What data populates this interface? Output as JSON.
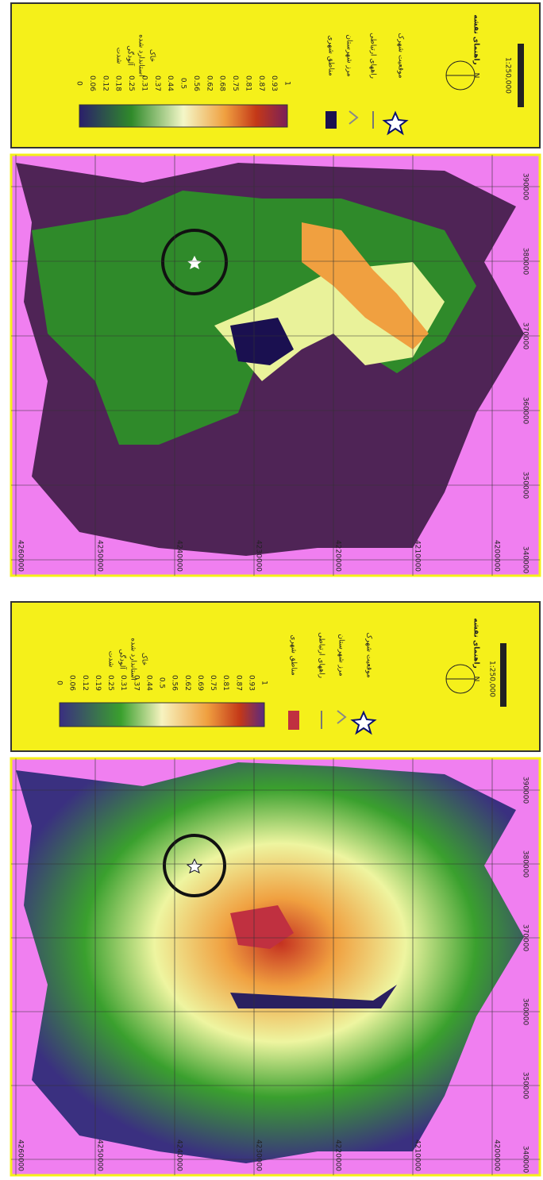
{
  "panels": [
    {
      "legend": {
        "title": "راهنمای نقشه",
        "caption": [
          "شدت",
          "آلودگی",
          "استاندارد شده",
          "خاک"
        ],
        "scale_labels": [
          "0",
          "0.06",
          "0.12",
          "0.18",
          "0.25",
          "0.31",
          "0.37",
          "0.44",
          "0.5",
          "0.56",
          "0.62",
          "0.68",
          "0.75",
          "0.81",
          "0.87",
          "0.93",
          "1"
        ],
        "items": [
          "مناطق شهری",
          "راههای ارتباطی",
          "مرز شهرستان",
          "موقعیت شهرک"
        ],
        "north": "N",
        "scale_text": "1:250,000"
      },
      "grid": {
        "y_labels": [
          "4260000",
          "4250000",
          "4240000",
          "4230000",
          "4220000",
          "4210000",
          "4200000"
        ],
        "x_labels": [
          "390000",
          "380000",
          "370000",
          "360000",
          "350000",
          "340000"
        ]
      }
    },
    {
      "legend": {
        "title": "راهنمای نقشه",
        "caption": [
          "شدت",
          "آلودگی",
          "استاندارد شده",
          "خاک"
        ],
        "scale_labels": [
          "0",
          "0.06",
          "0.12",
          "0.19",
          "0.25",
          "0.31",
          "0.37",
          "0.44",
          "0.5",
          "0.56",
          "0.62",
          "0.69",
          "0.75",
          "0.81",
          "0.87",
          "0.93",
          "1"
        ],
        "items": [
          "مناطق شهری",
          "راههای ارتباطی",
          "مرز شهرستان",
          "موقعیت شهرک"
        ],
        "north": "N",
        "scale_text": "1:250,000"
      },
      "grid": {
        "y_labels": [
          "4260000",
          "4250000",
          "4240000",
          "4230000",
          "4220000",
          "4210000",
          "4200000"
        ],
        "x_labels": [
          "390000",
          "380000",
          "370000",
          "360000",
          "350000",
          "340000"
        ]
      }
    }
  ]
}
